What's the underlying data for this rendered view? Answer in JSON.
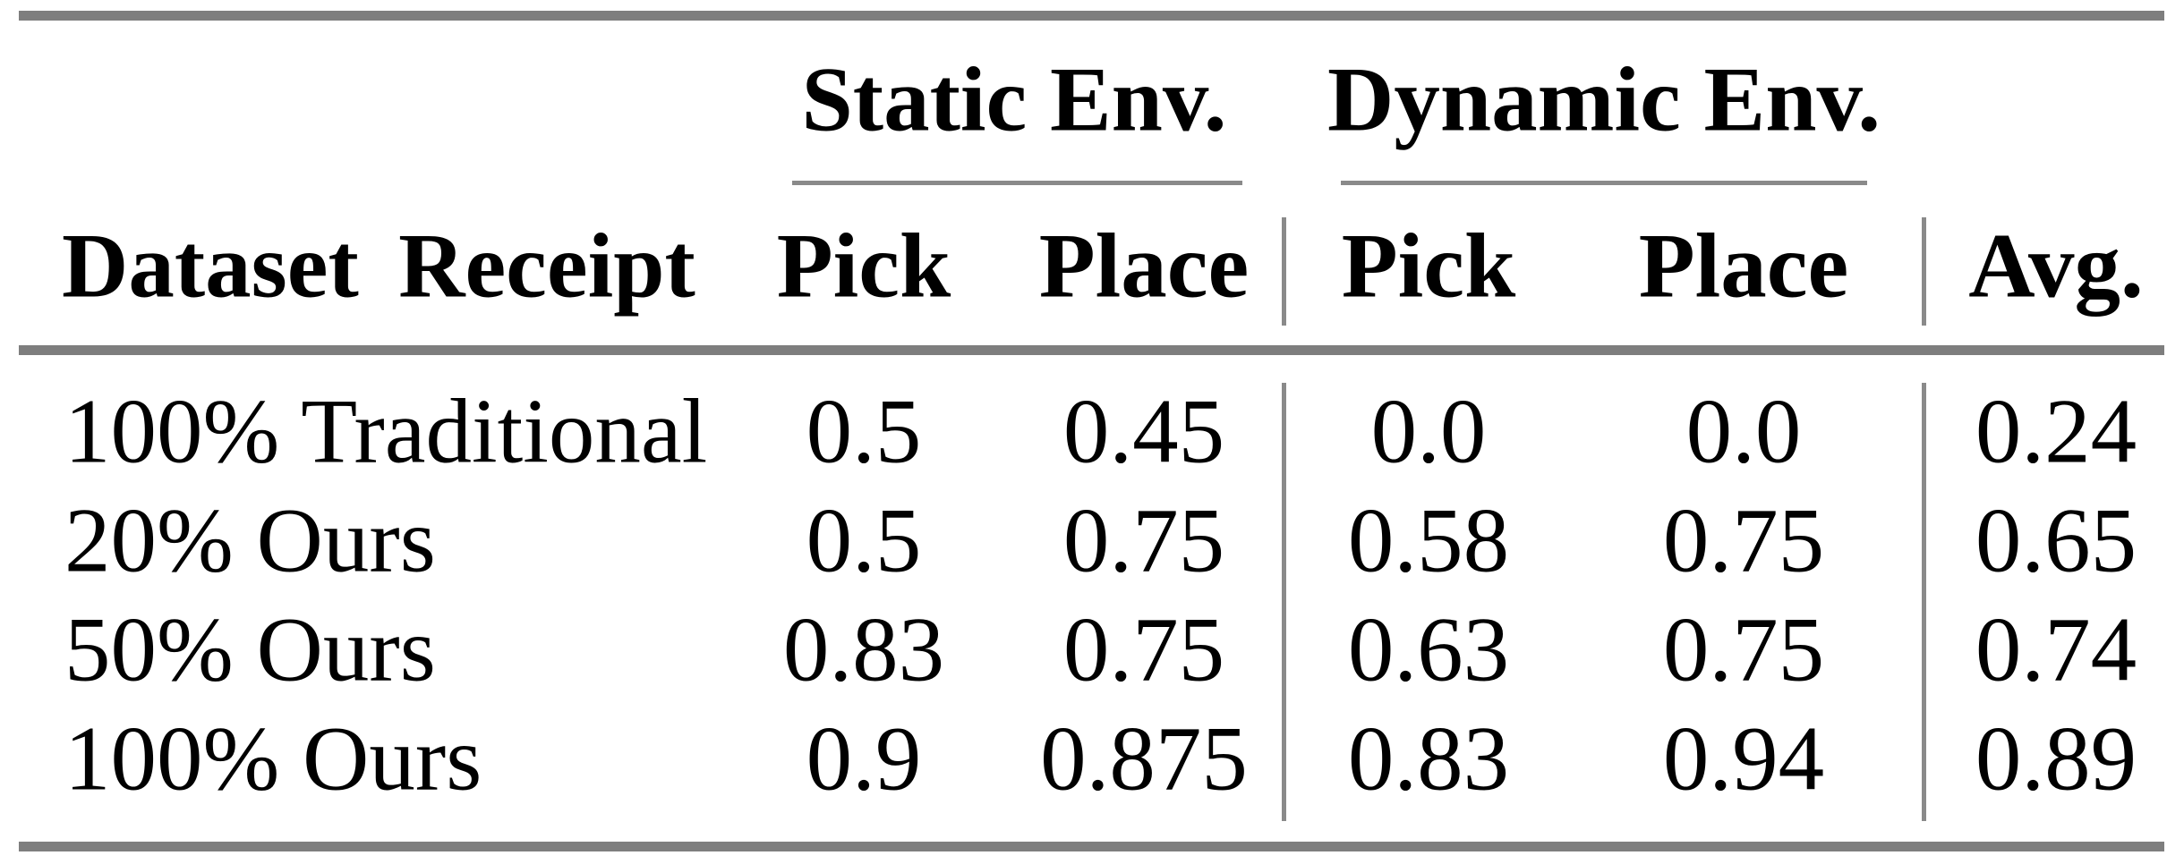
{
  "colors": {
    "background": "#ffffff",
    "text": "#000000",
    "thick_rule_gray": "#7e7e7e",
    "thin_rule_gray": "#8a8a8a"
  },
  "table": {
    "header": {
      "stub": "Dataset Receipt",
      "groups": [
        {
          "label": "Static Env."
        },
        {
          "label": "Dynamic Env."
        }
      ],
      "columns": [
        "Pick",
        "Place",
        "Pick",
        "Place",
        "Avg."
      ]
    },
    "rows": [
      {
        "label": "100% Traditional",
        "values": [
          "0.5",
          "0.45",
          "0.0",
          "0.0",
          "0.24"
        ]
      },
      {
        "label": "20% Ours",
        "values": [
          "0.5",
          "0.75",
          "0.58",
          "0.75",
          "0.65"
        ]
      },
      {
        "label": "50% Ours",
        "values": [
          "0.83",
          "0.75",
          "0.63",
          "0.75",
          "0.74"
        ]
      },
      {
        "label": "100% Ours",
        "values": [
          "0.9",
          "0.875",
          "0.83",
          "0.94",
          "0.89"
        ]
      }
    ]
  }
}
